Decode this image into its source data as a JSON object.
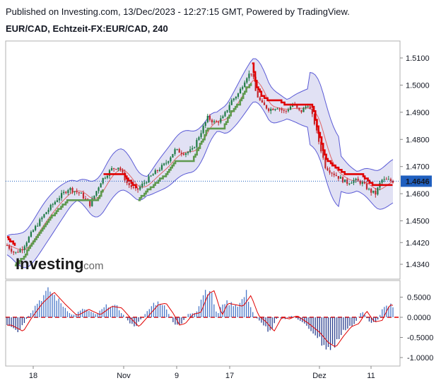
{
  "header": {
    "published": "Published on Investing.com, 13/Dec/2023 - 12:27:15 GMT, Powered by TradingView.",
    "symbol": "EUR/CAD, Echtzeit-FX:EUR/CAD, 240"
  },
  "logo": {
    "word": "Investing",
    "suffix": ".com"
  },
  "colors": {
    "up": "#1f7a45",
    "down": "#c2272d",
    "band_fill": "#dcdcf2",
    "band_line": "#5b5bd6",
    "basis": "#e06666",
    "stop_up": "#5f9a4f",
    "stop_down": "#e00000",
    "hist_up": "#4a78c8",
    "hist_down": "#2a3f8f",
    "signal": "#e00000",
    "last_bg": "#1f5fbf"
  },
  "chart_data": [
    {
      "type": "candlestick",
      "title": "",
      "y_ticks": [
        "1.5100",
        "1.5000",
        "1.4900",
        "1.4800",
        "1.4700",
        "1.4600",
        "1.4500",
        "1.4420",
        "1.4340"
      ],
      "y_tick_values": [
        1.51,
        1.5,
        1.49,
        1.48,
        1.47,
        1.46,
        1.45,
        1.442,
        1.434
      ],
      "last_price": "1.4646",
      "last_value": 1.4646,
      "x_ticks": [
        "18",
        "Nov",
        "9",
        "17",
        "Dez",
        "11"
      ],
      "x_tick_pos": [
        0.0,
        0.292,
        0.458,
        0.625,
        0.833,
        0.958
      ],
      "close_path": [
        [
          0.0,
          1.441
        ],
        [
          0.02,
          1.438
        ],
        [
          0.04,
          1.44
        ],
        [
          0.07,
          1.447
        ],
        [
          0.1,
          1.453
        ],
        [
          0.13,
          1.458
        ],
        [
          0.16,
          1.462
        ],
        [
          0.19,
          1.46
        ],
        [
          0.215,
          1.456
        ],
        [
          0.245,
          1.465
        ],
        [
          0.27,
          1.469
        ],
        [
          0.29,
          1.47
        ],
        [
          0.31,
          1.464
        ],
        [
          0.335,
          1.461
        ],
        [
          0.355,
          1.464
        ],
        [
          0.385,
          1.468
        ],
        [
          0.41,
          1.471
        ],
        [
          0.435,
          1.476
        ],
        [
          0.46,
          1.475
        ],
        [
          0.48,
          1.476
        ],
        [
          0.5,
          1.482
        ],
        [
          0.52,
          1.488
        ],
        [
          0.54,
          1.486
        ],
        [
          0.56,
          1.488
        ],
        [
          0.58,
          1.494
        ],
        [
          0.6,
          1.497
        ],
        [
          0.62,
          1.503
        ],
        [
          0.635,
          1.505
        ],
        [
          0.645,
          1.497
        ],
        [
          0.66,
          1.493
        ],
        [
          0.68,
          1.491
        ],
        [
          0.7,
          1.492
        ],
        [
          0.72,
          1.49
        ],
        [
          0.74,
          1.493
        ],
        [
          0.76,
          1.49
        ],
        [
          0.78,
          1.493
        ],
        [
          0.795,
          1.487
        ],
        [
          0.81,
          1.478
        ],
        [
          0.825,
          1.47
        ],
        [
          0.84,
          1.468
        ],
        [
          0.86,
          1.466
        ],
        [
          0.88,
          1.464
        ],
        [
          0.9,
          1.465
        ],
        [
          0.92,
          1.464
        ],
        [
          0.94,
          1.461
        ],
        [
          0.955,
          1.46
        ],
        [
          0.97,
          1.465
        ],
        [
          0.985,
          1.465
        ],
        [
          1.0,
          1.4646
        ]
      ]
    },
    {
      "type": "histogram",
      "title": "",
      "y_ticks": [
        "0.5000",
        "0.0000",
        "-0.5000",
        "-1.0000"
      ],
      "y_tick_values": [
        0.5,
        0.0,
        -0.5,
        -1.0
      ],
      "ylim": [
        -1.1,
        0.9
      ],
      "profile": [
        [
          0.0,
          -0.25
        ],
        [
          0.03,
          -0.45
        ],
        [
          0.05,
          -0.05
        ],
        [
          0.08,
          0.45
        ],
        [
          0.11,
          0.8
        ],
        [
          0.14,
          0.4
        ],
        [
          0.17,
          0.05
        ],
        [
          0.2,
          0.25
        ],
        [
          0.23,
          0.08
        ],
        [
          0.26,
          0.35
        ],
        [
          0.285,
          0.3
        ],
        [
          0.31,
          -0.05
        ],
        [
          0.33,
          -0.3
        ],
        [
          0.355,
          0.05
        ],
        [
          0.38,
          0.4
        ],
        [
          0.4,
          0.45
        ],
        [
          0.42,
          0.1
        ],
        [
          0.435,
          -0.25
        ],
        [
          0.45,
          -0.2
        ],
        [
          0.47,
          0.1
        ],
        [
          0.49,
          0.15
        ],
        [
          0.51,
          0.75
        ],
        [
          0.525,
          0.85
        ],
        [
          0.545,
          0.05
        ],
        [
          0.56,
          0.45
        ],
        [
          0.58,
          0.4
        ],
        [
          0.6,
          0.35
        ],
        [
          0.62,
          0.7
        ],
        [
          0.64,
          0.05
        ],
        [
          0.66,
          -0.15
        ],
        [
          0.68,
          -0.45
        ],
        [
          0.7,
          0.0
        ],
        [
          0.72,
          -0.05
        ],
        [
          0.74,
          0.05
        ],
        [
          0.77,
          -0.2
        ],
        [
          0.8,
          -0.5
        ],
        [
          0.82,
          -0.8
        ],
        [
          0.84,
          -0.95
        ],
        [
          0.86,
          -0.6
        ],
        [
          0.88,
          -0.3
        ],
        [
          0.9,
          -0.2
        ],
        [
          0.92,
          0.2
        ],
        [
          0.94,
          -0.15
        ],
        [
          0.96,
          -0.1
        ],
        [
          0.98,
          0.4
        ],
        [
          1.0,
          0.35
        ]
      ]
    }
  ]
}
